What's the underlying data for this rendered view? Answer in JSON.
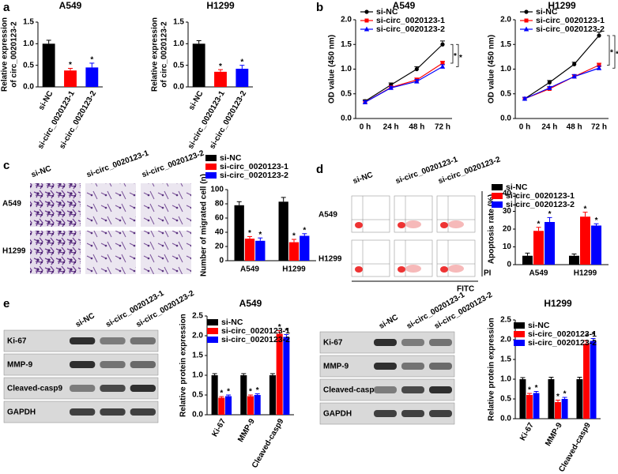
{
  "panel_labels": [
    "a",
    "b",
    "c",
    "d",
    "e"
  ],
  "panel_c_images": {
    "columns": [
      "si-NC",
      "si-circ_0020123-1",
      "si-circ_0020123-2"
    ],
    "rows": [
      "A549",
      "H1299"
    ]
  },
  "panel_d_images": {
    "columns": [
      "si-NC",
      "si-circ_0020123-1",
      "si-circ_0020123-2"
    ],
    "rows": [
      "A549",
      "H1299"
    ],
    "y_axis": "PI",
    "x_axis": "FITC"
  },
  "panel_e_blots": [
    {
      "columns": [
        "si-NC",
        "si-circ_0020123-1",
        "si-circ_0020123-2"
      ],
      "rows": [
        "Ki-67",
        "MMP-9",
        "Cleaved-casp9",
        "GAPDH"
      ]
    },
    {
      "columns": [
        "si-NC",
        "si-circ_0020123-1",
        "si-circ_0020123-2"
      ],
      "rows": [
        "Ki-67",
        "MMP-9",
        "Cleaved-casp9",
        "GAPDH"
      ]
    }
  ],
  "chart_data": [
    {
      "type": "bar",
      "title": "A549",
      "ylabel": [
        "Relative expression",
        "of circ_0020123-2"
      ],
      "categories": [
        "si-NC",
        "si-circ_0020123-1",
        "si-circ_0020123-2"
      ],
      "values": [
        1.0,
        0.38,
        0.45
      ],
      "errors": [
        0.08,
        0.05,
        0.1
      ],
      "colors": [
        "#000000",
        "#ff0000",
        "#0000ff"
      ],
      "ylim": [
        0,
        1.5
      ],
      "yticks": [
        {
          "value": 0,
          "label": "0.0"
        },
        0.5,
        {
          "value": 1,
          "label": "1.0"
        },
        1.5
      ],
      "significance_mark": "*"
    },
    {
      "type": "bar",
      "title": "H1299",
      "ylabel": [
        "Relative expression",
        "of circ_0020123-2"
      ],
      "categories": [
        "si-NC",
        "si-circ_0020123-1",
        "si-circ_0020123-2"
      ],
      "values": [
        1.0,
        0.35,
        0.42
      ],
      "errors": [
        0.07,
        0.05,
        0.08
      ],
      "colors": [
        "#000000",
        "#ff0000",
        "#0000ff"
      ],
      "ylim": [
        0,
        1.5
      ],
      "yticks": [
        {
          "value": 0,
          "label": "0.0"
        },
        0.5,
        {
          "value": 1,
          "label": "1.0"
        },
        1.5
      ],
      "significance_mark": "*"
    },
    {
      "type": "line",
      "title": "A549",
      "ylabel": [
        "OD value (450 nm)"
      ],
      "categories": [
        "0 h",
        "24 h",
        "48 h",
        "72 h"
      ],
      "series": [
        {
          "name": "si-NC",
          "color": "#000000",
          "marker": "circle",
          "values": [
            0.35,
            0.68,
            1.0,
            1.5
          ],
          "errors": [
            0.03,
            0.04,
            0.05,
            0.07
          ]
        },
        {
          "name": "si-circ_0020123-1",
          "color": "#ff0000",
          "marker": "square",
          "values": [
            0.33,
            0.63,
            0.78,
            1.12
          ],
          "errors": [
            0.03,
            0.03,
            0.04,
            0.04
          ]
        },
        {
          "name": "si-circ_0020123-2",
          "color": "#0000ff",
          "marker": "triangle",
          "values": [
            0.33,
            0.62,
            0.75,
            1.05
          ],
          "errors": [
            0.03,
            0.03,
            0.04,
            0.04
          ]
        }
      ],
      "ylim": [
        0,
        2
      ],
      "yticks": [
        {
          "value": 0,
          "label": "0.0"
        },
        0.5,
        {
          "value": 1,
          "label": "1.0"
        },
        1.5,
        {
          "value": 2,
          "label": "2.0"
        }
      ],
      "legend": "upper left",
      "significance_mark": "*"
    },
    {
      "type": "line",
      "title": "H1299",
      "ylabel": [
        "OD value (450 nm)"
      ],
      "categories": [
        "0 h",
        "24 h",
        "48 h",
        "72 h"
      ],
      "series": [
        {
          "name": "si-NC",
          "color": "#000000",
          "marker": "circle",
          "values": [
            0.4,
            0.73,
            1.1,
            1.68
          ],
          "errors": [
            0.03,
            0.04,
            0.04,
            0.07
          ]
        },
        {
          "name": "si-circ_0020123-1",
          "color": "#ff0000",
          "marker": "square",
          "values": [
            0.4,
            0.6,
            0.85,
            1.08
          ],
          "errors": [
            0.03,
            0.03,
            0.04,
            0.04
          ]
        },
        {
          "name": "si-circ_0020123-2",
          "color": "#0000ff",
          "marker": "triangle",
          "values": [
            0.4,
            0.62,
            0.85,
            1.02
          ],
          "errors": [
            0.03,
            0.03,
            0.04,
            0.04
          ]
        }
      ],
      "ylim": [
        0,
        2
      ],
      "yticks": [
        {
          "value": 0,
          "label": "0.0"
        },
        0.5,
        {
          "value": 1,
          "label": "1.0"
        },
        1.5,
        {
          "value": 2,
          "label": "2.0"
        }
      ],
      "legend": "upper left",
      "significance_mark": "*"
    },
    {
      "type": "bar",
      "ylabel": [
        "Number of migrated cell (n)"
      ],
      "categories": [
        "A549",
        "H1299"
      ],
      "series": [
        {
          "name": "si-NC",
          "color": "#000000",
          "values": [
            78,
            83
          ],
          "errors": [
            5,
            6
          ]
        },
        {
          "name": "si-circ_0020123-1",
          "color": "#ff0000",
          "values": [
            31,
            26
          ],
          "errors": [
            3,
            4
          ]
        },
        {
          "name": "si-circ_0020123-2",
          "color": "#0000ff",
          "values": [
            28,
            35
          ],
          "errors": [
            4,
            3
          ]
        }
      ],
      "ylim": [
        0,
        100
      ],
      "yticks": [
        0,
        20,
        40,
        60,
        80,
        100
      ],
      "legend": "upper right",
      "significance_mark": "*"
    },
    {
      "type": "bar",
      "ylabel": [
        "Apoptosis rate (%)"
      ],
      "categories": [
        "A549",
        "H1299"
      ],
      "series": [
        {
          "name": "si-NC",
          "color": "#000000",
          "values": [
            5,
            5
          ],
          "errors": [
            1.5,
            1
          ]
        },
        {
          "name": "si-circ_0020123-1",
          "color": "#ff0000",
          "values": [
            19,
            27
          ],
          "errors": [
            2,
            2.5
          ]
        },
        {
          "name": "si-circ_0020123-2",
          "color": "#0000ff",
          "values": [
            24,
            22
          ],
          "errors": [
            2.5,
            1
          ]
        }
      ],
      "ylim": [
        0,
        40
      ],
      "yticks": [
        0,
        10,
        20,
        30,
        40
      ],
      "legend": "upper right",
      "significance_mark": "*"
    },
    {
      "type": "bar",
      "title": "A549",
      "ylabel": [
        "Relative protein expression"
      ],
      "categories": [
        "Ki-67",
        "MMP-9",
        "Cleaved-casp9"
      ],
      "series": [
        {
          "name": "si-NC",
          "color": "#000000",
          "values": [
            1,
            1,
            1
          ],
          "errors": [
            0.04,
            0.04,
            0.04
          ]
        },
        {
          "name": "si-circ_0020123-1",
          "color": "#ff0000",
          "values": [
            0.43,
            0.47,
            2.05
          ],
          "errors": [
            0.03,
            0.03,
            0.08
          ]
        },
        {
          "name": "si-circ_0020123-2",
          "color": "#0000ff",
          "values": [
            0.47,
            0.5,
            1.97
          ],
          "errors": [
            0.03,
            0.03,
            0.06
          ]
        }
      ],
      "ylim": [
        0,
        2.5
      ],
      "yticks": [
        {
          "value": 0,
          "label": "0.0"
        },
        0.5,
        {
          "value": 1,
          "label": "1.0"
        },
        1.5,
        {
          "value": 2,
          "label": "2.0"
        },
        2.5
      ],
      "legend": "upper right",
      "significance_mark": "*"
    },
    {
      "type": "bar",
      "title": "H1299",
      "ylabel": [
        "Relative protein expression"
      ],
      "categories": [
        "Ki-67",
        "MMP-9",
        "Cleaved-casp9"
      ],
      "series": [
        {
          "name": "si-NC",
          "color": "#000000",
          "values": [
            1,
            1,
            1
          ],
          "errors": [
            0.04,
            0.05,
            0.05
          ]
        },
        {
          "name": "si-circ_0020123-1",
          "color": "#ff0000",
          "values": [
            0.6,
            0.42,
            1.9
          ],
          "errors": [
            0.04,
            0.05,
            0.08
          ]
        },
        {
          "name": "si-circ_0020123-2",
          "color": "#0000ff",
          "values": [
            0.65,
            0.5,
            1.97
          ],
          "errors": [
            0.04,
            0.04,
            0.06
          ]
        }
      ],
      "ylim": [
        0,
        2.5
      ],
      "yticks": [
        {
          "value": 0,
          "label": "0.0"
        },
        0.5,
        {
          "value": 1,
          "label": "1.0"
        },
        1.5,
        {
          "value": 2,
          "label": "2.0"
        },
        2.5
      ],
      "legend": "upper right",
      "significance_mark": "*"
    }
  ]
}
